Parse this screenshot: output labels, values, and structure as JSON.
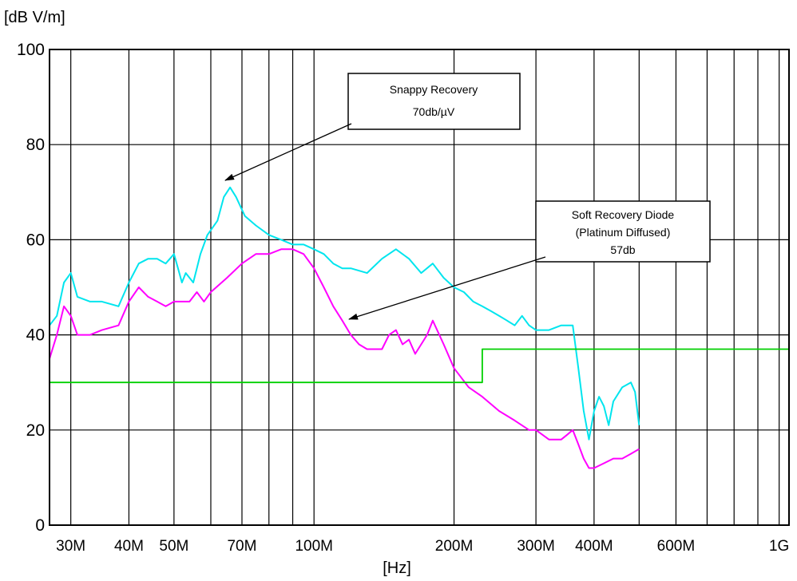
{
  "chart_data": {
    "type": "line",
    "xlabel": "[Hz]",
    "ylabel": "[dB  V/m]",
    "x_scale": "log",
    "xlim": [
      27000000,
      1050000000
    ],
    "ylim": [
      0,
      100
    ],
    "grid": true,
    "y_ticks": [
      0,
      20,
      40,
      60,
      80,
      100
    ],
    "x_ticks": [
      {
        "value": 30000000,
        "label": "30M"
      },
      {
        "value": 40000000,
        "label": "40M"
      },
      {
        "value": 50000000,
        "label": "50M"
      },
      {
        "value": 70000000,
        "label": "70M"
      },
      {
        "value": 100000000,
        "label": "100M"
      },
      {
        "value": 200000000,
        "label": "200M"
      },
      {
        "value": 300000000,
        "label": "300M"
      },
      {
        "value": 400000000,
        "label": "400M"
      },
      {
        "value": 600000000,
        "label": "600M"
      },
      {
        "value": 1000000000,
        "label": "1G"
      }
    ],
    "x_gridlines": [
      30000000,
      40000000,
      50000000,
      60000000,
      70000000,
      80000000,
      90000000,
      100000000,
      200000000,
      300000000,
      400000000,
      500000000,
      600000000,
      700000000,
      800000000,
      900000000,
      1000000000
    ],
    "series": [
      {
        "color": "#00e5ee",
        "x": [
          27000000,
          28000000,
          29000000,
          30000000,
          31000000,
          33000000,
          35000000,
          38000000,
          40000000,
          42000000,
          44000000,
          46000000,
          48000000,
          50000000,
          51000000,
          52000000,
          53000000,
          55000000,
          56000000,
          57000000,
          59000000,
          62000000,
          64000000,
          66000000,
          68000000,
          71000000,
          75000000,
          80000000,
          85000000,
          90000000,
          95000000,
          100000000,
          105000000,
          110000000,
          115000000,
          120000000,
          130000000,
          140000000,
          150000000,
          160000000,
          170000000,
          180000000,
          190000000,
          200000000,
          210000000,
          220000000,
          230000000,
          240000000,
          250000000,
          260000000,
          270000000,
          280000000,
          290000000,
          300000000,
          320000000,
          340000000,
          360000000,
          370000000,
          380000000,
          390000000,
          400000000,
          410000000,
          420000000,
          430000000,
          440000000,
          460000000,
          480000000,
          490000000,
          500000000
        ],
        "y": [
          42,
          44,
          51,
          53,
          48,
          47,
          47,
          46,
          51,
          55,
          56,
          56,
          55,
          57,
          54,
          51,
          53,
          51,
          54,
          57,
          61,
          64,
          69,
          71,
          69,
          65,
          63,
          61,
          60,
          59,
          59,
          58,
          57,
          55,
          54,
          54,
          53,
          56,
          58,
          56,
          53,
          55,
          52,
          50,
          49,
          47,
          46,
          45,
          44,
          43,
          42,
          44,
          42,
          41,
          41,
          42,
          42,
          33,
          24,
          18,
          24,
          27,
          25,
          21,
          26,
          29,
          30,
          28,
          21
        ]
      },
      {
        "color": "#ff00ff",
        "x": [
          27000000,
          28000000,
          29000000,
          30000000,
          31000000,
          33000000,
          35000000,
          38000000,
          40000000,
          42000000,
          44000000,
          46000000,
          48000000,
          50000000,
          52000000,
          54000000,
          56000000,
          58000000,
          60000000,
          65000000,
          70000000,
          75000000,
          80000000,
          85000000,
          90000000,
          95000000,
          100000000,
          105000000,
          110000000,
          115000000,
          120000000,
          125000000,
          130000000,
          135000000,
          140000000,
          145000000,
          150000000,
          155000000,
          160000000,
          165000000,
          170000000,
          175000000,
          180000000,
          190000000,
          200000000,
          215000000,
          230000000,
          250000000,
          270000000,
          290000000,
          300000000,
          320000000,
          340000000,
          350000000,
          360000000,
          370000000,
          380000000,
          390000000,
          400000000,
          420000000,
          440000000,
          460000000,
          480000000,
          500000000
        ],
        "y": [
          35,
          40,
          46,
          44,
          40,
          40,
          41,
          42,
          47,
          50,
          48,
          47,
          46,
          47,
          47,
          47,
          49,
          47,
          49,
          52,
          55,
          57,
          57,
          58,
          58,
          57,
          54,
          50,
          46,
          43,
          40,
          38,
          37,
          37,
          37,
          40,
          41,
          38,
          39,
          36,
          38,
          40,
          43,
          38,
          33,
          29,
          27,
          24,
          22,
          20,
          20,
          18,
          18,
          19,
          20,
          17,
          14,
          12,
          12,
          13,
          14,
          14,
          15,
          16
        ]
      },
      {
        "color": "#00d000",
        "x": [
          27000000,
          230000000,
          230000000,
          1050000000
        ],
        "y": [
          30,
          30,
          37,
          37
        ]
      }
    ],
    "annotations": [
      {
        "lines": [
          "Snappy Recovery",
          "70db/µV"
        ]
      },
      {
        "lines": [
          "Soft Recovery Diode",
          "(Platinum Diffused)",
          "57db"
        ]
      }
    ]
  }
}
